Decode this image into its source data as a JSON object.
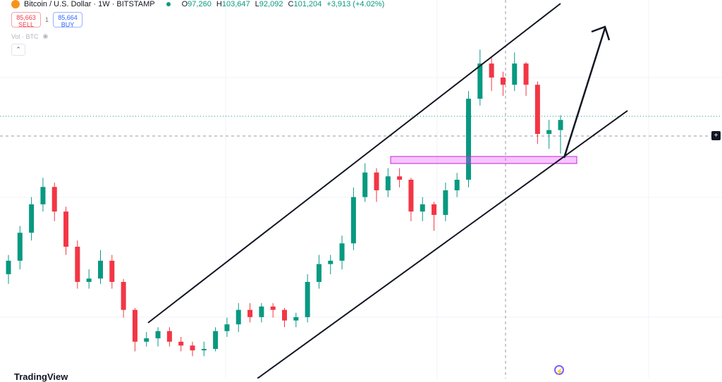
{
  "header": {
    "symbol": "Bitcoin / U.S. Dollar · 1W · BITSTAMP",
    "open_label": "O",
    "open": "97,260",
    "high_label": "H",
    "high": "103,647",
    "low_label": "L",
    "low": "92,092",
    "close_label": "C",
    "close": "101,204",
    "change": "+3,913 (+4.02%)"
  },
  "trade": {
    "sell_price": "85,663",
    "sell_label": "SELL",
    "spread": "1",
    "buy_price": "85,664",
    "buy_label": "BUY"
  },
  "volume": {
    "label": "Vol · BTC",
    "icon": "eye-icon"
  },
  "collapse_icon": "chevron-up-icon",
  "branding": "TradingView",
  "colors": {
    "up": "#089981",
    "down": "#f23645",
    "zone": "#e040fb",
    "lines": "#131722"
  },
  "chart_data": {
    "type": "candlestick",
    "ylim": [
      38,
      115
    ],
    "unit": "thousand USD (approx.)",
    "candles": [
      [
        57,
        61,
        55,
        59.8
      ],
      [
        59.8,
        67,
        58,
        65.6
      ],
      [
        65.6,
        73,
        64,
        71.5
      ],
      [
        71.5,
        77,
        70,
        75.1
      ],
      [
        75.1,
        76,
        68,
        70.0
      ],
      [
        70.0,
        71,
        61,
        62.7
      ],
      [
        62.7,
        64,
        54,
        55.4
      ],
      [
        55.4,
        58,
        54,
        56.1
      ],
      [
        56.1,
        62,
        55,
        59.8
      ],
      [
        59.8,
        61,
        54,
        55.4
      ],
      [
        55.4,
        56,
        48,
        49.6
      ],
      [
        49.6,
        50,
        41,
        43.0
      ],
      [
        43.0,
        45,
        42,
        43.7
      ],
      [
        43.7,
        46,
        42,
        45.2
      ],
      [
        45.2,
        46,
        42,
        43.0
      ],
      [
        43.0,
        44,
        41,
        42.2
      ],
      [
        42.2,
        43,
        40,
        41.2
      ],
      [
        41.2,
        43,
        40,
        41.5
      ],
      [
        41.5,
        46,
        41,
        45.2
      ],
      [
        45.2,
        48,
        44,
        46.6
      ],
      [
        46.6,
        51,
        45,
        49.6
      ],
      [
        49.6,
        51,
        47,
        48.1
      ],
      [
        48.1,
        51,
        47,
        50.3
      ],
      [
        50.3,
        51,
        48,
        49.6
      ],
      [
        49.6,
        50,
        46,
        47.4
      ],
      [
        47.4,
        49,
        46,
        48.1
      ],
      [
        48.1,
        57,
        47,
        55.4
      ],
      [
        55.4,
        61,
        54,
        59.1
      ],
      [
        59.1,
        61,
        57,
        59.8
      ],
      [
        59.8,
        65,
        58,
        63.4
      ],
      [
        63.4,
        75,
        62,
        73.0
      ],
      [
        73.0,
        80,
        72,
        78.1
      ],
      [
        78.1,
        79,
        72,
        74.4
      ],
      [
        74.4,
        79,
        73,
        77.3
      ],
      [
        77.3,
        79,
        75,
        76.6
      ],
      [
        76.6,
        77,
        68,
        70.0
      ],
      [
        70.0,
        73,
        68,
        71.5
      ],
      [
        71.5,
        72,
        66,
        69.3
      ],
      [
        69.3,
        76,
        68,
        74.4
      ],
      [
        74.4,
        78,
        73,
        76.6
      ],
      [
        76.6,
        95,
        75,
        93.4
      ],
      [
        93.4,
        103.6,
        92,
        100.7
      ],
      [
        100.7,
        102,
        95,
        97.8
      ],
      [
        97.8,
        99,
        94,
        96.3
      ],
      [
        96.3,
        103,
        95,
        100.7
      ],
      [
        100.7,
        101,
        94,
        96.3
      ],
      [
        96.3,
        97,
        84,
        86.1
      ],
      [
        86.1,
        89,
        83,
        86.9
      ],
      [
        86.9,
        90,
        82,
        89.0
      ]
    ],
    "current_price": 85.663,
    "hover_close": 101.204
  }
}
